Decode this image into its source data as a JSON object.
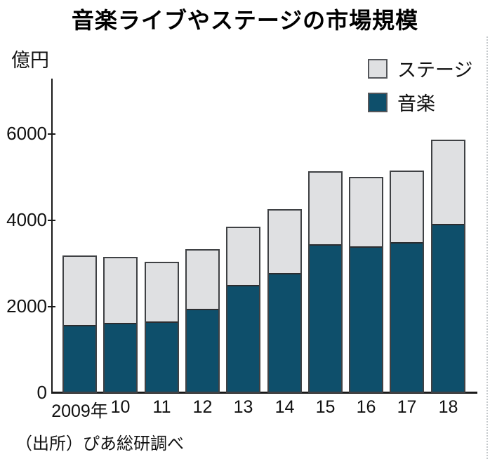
{
  "chart_data": {
    "type": "bar",
    "stacked": true,
    "title": "音楽ライブやステージの市場規模",
    "unit": "億円",
    "categories": [
      "2009年",
      "10",
      "11",
      "12",
      "13",
      "14",
      "15",
      "16",
      "17",
      "18"
    ],
    "series": [
      {
        "name": "音楽",
        "color": "#0e4f6b",
        "values": [
          1540,
          1600,
          1630,
          1920,
          2470,
          2750,
          3410,
          3370,
          3470,
          3880
        ]
      },
      {
        "name": "ステージ",
        "color": "#dfe0e2",
        "values": [
          1650,
          1560,
          1410,
          1420,
          1390,
          1510,
          1730,
          1640,
          1690,
          1990
        ]
      }
    ],
    "totals": [
      3190,
      3160,
      3040,
      3340,
      3860,
      4260,
      5140,
      5010,
      5160,
      5870
    ],
    "legend_order": [
      "ステージ",
      "音楽"
    ],
    "legend_position": "top-right",
    "xlabel": "",
    "ylabel": "億円",
    "ylim": [
      0,
      7280
    ],
    "yticks": [
      0,
      2000,
      4000,
      6000
    ],
    "grid": false
  },
  "source": "（出所）ぴあ総研調べ",
  "colors": {
    "music": "#0e4f6b",
    "stage": "#dfe0e2",
    "bar_border": "#3f4144",
    "axis": "#1a1a1a",
    "text": "#111111",
    "background": "#ffffff"
  }
}
